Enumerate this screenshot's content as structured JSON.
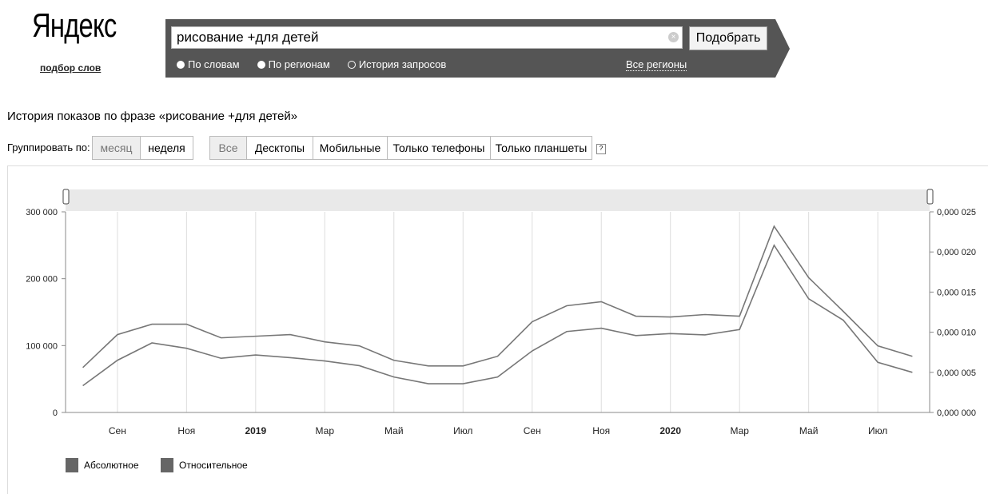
{
  "header": {
    "logo": "Яндекс",
    "sublogo": "подбор слов"
  },
  "search": {
    "query": "рисование +для детей",
    "submit_label": "Подобрать",
    "modes": [
      {
        "label": "По словам",
        "selected": false
      },
      {
        "label": "По регионам",
        "selected": false
      },
      {
        "label": "История запросов",
        "selected": true
      }
    ],
    "region_link": "Все регионы"
  },
  "history": {
    "title": "История показов по фразе «рисование +для детей»",
    "group_label": "Группировать по:",
    "group_options": [
      "месяц",
      "неделя"
    ],
    "device_tabs": [
      "Все",
      "Десктопы",
      "Мобильные",
      "Только телефоны",
      "Только планшеты"
    ],
    "help": "?"
  },
  "chart_data": {
    "type": "line",
    "x": [
      "2018-07",
      "2018-08",
      "2018-09",
      "2018-10",
      "2018-11",
      "2018-12",
      "2019-01",
      "2019-02",
      "2019-03",
      "2019-04",
      "2019-05",
      "2019-06",
      "2019-07",
      "2019-08",
      "2019-09",
      "2019-10",
      "2019-11",
      "2019-12",
      "2020-01",
      "2020-02",
      "2020-03",
      "2020-04",
      "2020-05",
      "2020-06",
      "2020-07"
    ],
    "x_tick_labels": [
      "Сен",
      "Ноя",
      "2019",
      "Мар",
      "Май",
      "Июл",
      "Сен",
      "Ноя",
      "2020",
      "Мар",
      "Май",
      "Июл"
    ],
    "y_left_ticks": [
      "0",
      "100 000",
      "200 000",
      "300 000"
    ],
    "y_right_ticks": [
      "0,000 000",
      "0,000 005",
      "0,000 010",
      "0,000 015",
      "0,000 020",
      "0,000 025"
    ],
    "ylim_left": [
      0,
      300000
    ],
    "ylim_right": [
      0,
      2.5e-05
    ],
    "series": [
      {
        "name": "Абсолютное",
        "axis": "left",
        "values": [
          40000,
          78000,
          104000,
          96000,
          81000,
          86000,
          82000,
          77000,
          70000,
          53000,
          43000,
          43000,
          53000,
          92000,
          121000,
          126000,
          115000,
          118000,
          116000,
          124000,
          250000,
          170000,
          138000,
          75000,
          60000
        ]
      },
      {
        "name": "Относительное",
        "axis": "right",
        "values": [
          5.6e-06,
          9.7e-06,
          1.1e-05,
          1.1e-05,
          9.3e-06,
          9.5e-06,
          9.7e-06,
          8.8e-06,
          8.3e-06,
          6.5e-06,
          5.8e-06,
          5.8e-06,
          7e-06,
          1.13e-05,
          1.33e-05,
          1.38e-05,
          1.2e-05,
          1.19e-05,
          1.22e-05,
          1.2e-05,
          2.32e-05,
          1.68e-05,
          1.26e-05,
          8.3e-06,
          7e-06
        ]
      }
    ],
    "grid": true,
    "legend_position": "bottom-left",
    "line_color": "#777777"
  }
}
